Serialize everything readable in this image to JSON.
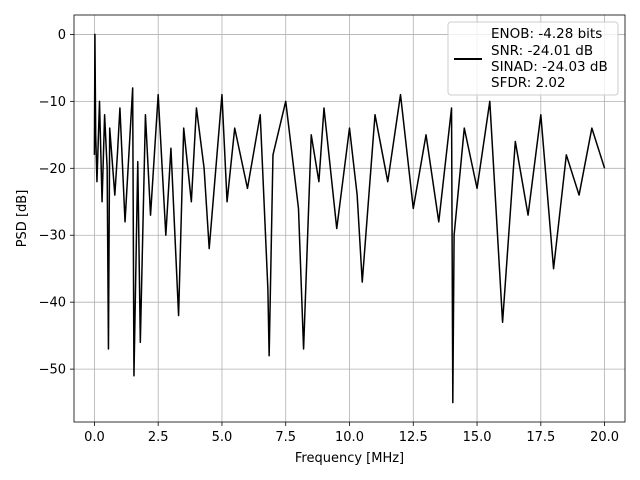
{
  "chart_data": {
    "type": "line",
    "title": "",
    "xlabel": "Frequency [MHz]",
    "ylabel": "PSD [dB]",
    "xlim": [
      -0.8,
      20.8
    ],
    "ylim": [
      -57.9,
      2.9
    ],
    "xticks": [
      0.0,
      2.5,
      5.0,
      7.5,
      10.0,
      12.5,
      15.0,
      17.5,
      20.0
    ],
    "xtick_labels": [
      "0.0",
      "2.5",
      "5.0",
      "7.5",
      "10.0",
      "12.5",
      "15.0",
      "17.5",
      "20.0"
    ],
    "yticks": [
      0,
      -10,
      -20,
      -30,
      -40,
      -50
    ],
    "ytick_labels": [
      "0",
      "−10",
      "−20",
      "−30",
      "−40",
      "−50"
    ],
    "grid": true,
    "legend_position": "top-right",
    "series_color": "#000000",
    "legend": [
      "ENOB: -4.28 bits",
      "SNR: -24.01 dB",
      "SINAD: -24.03 dB",
      "SFDR: 2.02"
    ],
    "series": [
      {
        "x": [
          0.0,
          0.02,
          0.05,
          0.1,
          0.2,
          0.3,
          0.4,
          0.5,
          0.55,
          0.6,
          0.8,
          0.9,
          1.0,
          1.2,
          1.5,
          1.55,
          1.7,
          1.8,
          2.0,
          2.2,
          2.5,
          2.8,
          3.0,
          3.3,
          3.5,
          3.8,
          4.0,
          4.3,
          4.5,
          5.0,
          5.2,
          5.5,
          6.0,
          6.5,
          6.8,
          6.85,
          7.0,
          7.5,
          8.0,
          8.2,
          8.5,
          8.8,
          9.0,
          9.5,
          10.0,
          10.3,
          10.5,
          11.0,
          11.5,
          12.0,
          12.5,
          13.0,
          13.5,
          14.0,
          14.05,
          14.1,
          14.5,
          15.0,
          15.5,
          16.0,
          16.5,
          17.0,
          17.5,
          18.0,
          18.5,
          19.0,
          19.5,
          20.0
        ],
        "y": [
          -18,
          0,
          -15,
          -22,
          -10,
          -25,
          -12,
          -20,
          -47,
          -14,
          -24,
          -18,
          -11,
          -28,
          -8,
          -51,
          -19,
          -46,
          -12,
          -27,
          -9,
          -30,
          -17,
          -42,
          -14,
          -25,
          -11,
          -20,
          -32,
          -9,
          -25,
          -14,
          -23,
          -12,
          -38,
          -48,
          -18,
          -10,
          -26,
          -47,
          -15,
          -22,
          -11,
          -29,
          -14,
          -24,
          -37,
          -12,
          -22,
          -9,
          -26,
          -15,
          -28,
          -11,
          -55,
          -30,
          -14,
          -23,
          -10,
          -43,
          -16,
          -27,
          -12,
          -35,
          -18,
          -24,
          -14,
          -20
        ]
      }
    ]
  }
}
